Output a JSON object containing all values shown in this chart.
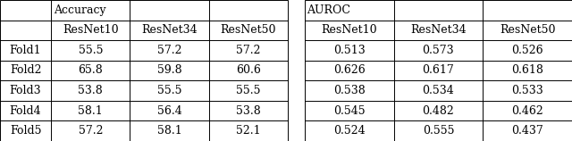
{
  "col_groups": [
    {
      "label": "Accuracy",
      "subcolumns": [
        "ResNet10",
        "ResNet34",
        "ResNet50"
      ]
    },
    {
      "label": "AUROC",
      "subcolumns": [
        "ResNet10",
        "ResNet34",
        "ResNet50"
      ]
    }
  ],
  "row_labels": [
    "Fold1",
    "Fold2",
    "Fold3",
    "Fold4",
    "Fold5"
  ],
  "accuracy_data": [
    [
      "55.5",
      "57.2",
      "57.2"
    ],
    [
      "65.8",
      "59.8",
      "60.6"
    ],
    [
      "53.8",
      "55.5",
      "55.5"
    ],
    [
      "58.1",
      "56.4",
      "53.8"
    ],
    [
      "57.2",
      "58.1",
      "52.1"
    ]
  ],
  "auroc_data": [
    [
      "0.513",
      "0.573",
      "0.526"
    ],
    [
      "0.626",
      "0.617",
      "0.618"
    ],
    [
      "0.538",
      "0.534",
      "0.533"
    ],
    [
      "0.545",
      "0.482",
      "0.462"
    ],
    [
      "0.524",
      "0.555",
      "0.437"
    ]
  ],
  "line_color": "#000000",
  "font_size": 9.0,
  "header_font_size": 9.0
}
